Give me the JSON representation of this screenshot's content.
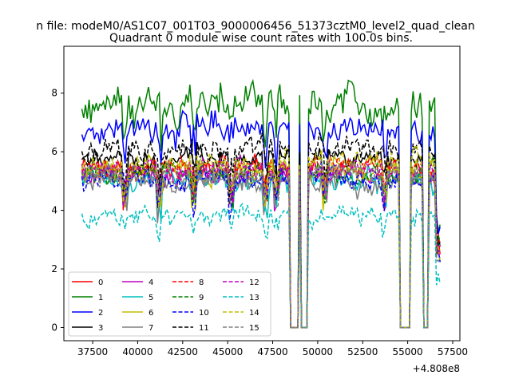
{
  "chart_data": {
    "type": "line",
    "suptitle": "n file: modeM0/AS1C07_001T03_9000006456_51373cztM0_level2_quad_clean",
    "title": "Quadrant 0 module wise count rates with 100.0s bins.",
    "xlabel": "",
    "ylabel": "",
    "offset_label": "+4.808e8",
    "x_offset": 480800000,
    "xlim": [
      35900,
      57900
    ],
    "ylim": [
      -0.45,
      9.6
    ],
    "xticks": [
      37500,
      40000,
      42500,
      45000,
      47500,
      50000,
      52500,
      55000,
      57500
    ],
    "yticks": [
      0,
      2,
      4,
      6,
      8
    ],
    "grid": false,
    "legend_position": "lower-left",
    "x_start": 36900,
    "x_end": 56800,
    "bin": 100,
    "gaps": [
      [
        48500,
        48900
      ],
      [
        49050,
        49450
      ],
      [
        54550,
        55150
      ],
      [
        55850,
        56150
      ]
    ],
    "series": [
      {
        "name": "0",
        "color": "#ff0000",
        "dash": "solid",
        "level": 5.4,
        "noise": 0.35
      },
      {
        "name": "1",
        "color": "#008000",
        "dash": "solid",
        "level": 7.6,
        "noise": 0.6
      },
      {
        "name": "2",
        "color": "#0000ff",
        "dash": "solid",
        "level": 6.8,
        "noise": 0.45
      },
      {
        "name": "3",
        "color": "#000000",
        "dash": "solid",
        "level": 5.8,
        "noise": 0.35
      },
      {
        "name": "4",
        "color": "#bf00bf",
        "dash": "solid",
        "level": 5.2,
        "noise": 0.35
      },
      {
        "name": "5",
        "color": "#00bfbf",
        "dash": "solid",
        "level": 5.0,
        "noise": 0.35
      },
      {
        "name": "6",
        "color": "#bfbf00",
        "dash": "solid",
        "level": 5.3,
        "noise": 0.4
      },
      {
        "name": "7",
        "color": "#808080",
        "dash": "solid",
        "level": 5.0,
        "noise": 0.35
      },
      {
        "name": "8",
        "color": "#ff0000",
        "dash": "dashed",
        "level": 5.5,
        "noise": 0.35
      },
      {
        "name": "9",
        "color": "#008000",
        "dash": "dashed",
        "level": 5.3,
        "noise": 0.35
      },
      {
        "name": "10",
        "color": "#0000ff",
        "dash": "dashed",
        "level": 5.1,
        "noise": 0.35
      },
      {
        "name": "11",
        "color": "#000000",
        "dash": "dashed",
        "level": 6.1,
        "noise": 0.4
      },
      {
        "name": "12",
        "color": "#bf00bf",
        "dash": "dashed",
        "level": 5.4,
        "noise": 0.35
      },
      {
        "name": "13",
        "color": "#00bfbf",
        "dash": "dashed",
        "level": 3.8,
        "noise": 0.3
      },
      {
        "name": "14",
        "color": "#bfbf00",
        "dash": "dashed",
        "level": 5.6,
        "noise": 0.4
      },
      {
        "name": "15",
        "color": "#808080",
        "dash": "dashed",
        "level": 5.2,
        "noise": 0.35
      }
    ]
  }
}
